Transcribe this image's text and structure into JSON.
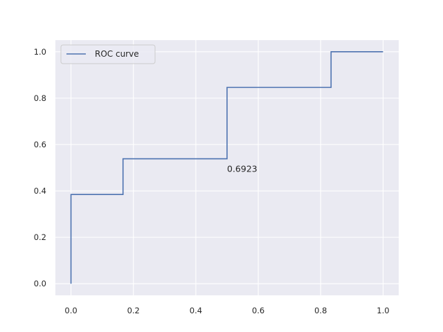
{
  "chart_data": {
    "type": "line",
    "title": "",
    "xlabel": "",
    "ylabel": "",
    "xlim": [
      -0.05,
      1.05
    ],
    "ylim": [
      -0.05,
      1.05
    ],
    "x_ticks": [
      0.0,
      0.2,
      0.4,
      0.6,
      0.8,
      1.0
    ],
    "x_tick_labels": [
      "0.0",
      "0.2",
      "0.4",
      "0.6",
      "0.8",
      "1.0"
    ],
    "y_ticks": [
      0.0,
      0.2,
      0.4,
      0.6,
      0.8,
      1.0
    ],
    "y_tick_labels": [
      "0.0",
      "0.2",
      "0.4",
      "0.6",
      "0.8",
      "1.0"
    ],
    "grid": true,
    "legend_position": "top-left",
    "series": [
      {
        "name": "ROC curve",
        "color": "#4c72b0",
        "x": [
          0.0,
          0.0,
          0.0,
          0.1667,
          0.1667,
          0.5,
          0.5,
          0.8333,
          0.8333,
          1.0
        ],
        "y": [
          0.0,
          0.0,
          0.3846,
          0.3846,
          0.5385,
          0.5385,
          0.8462,
          0.8462,
          1.0,
          1.0
        ]
      }
    ],
    "annotations": [
      {
        "text": "0.6923",
        "x": 0.5,
        "y": 0.5
      }
    ]
  }
}
